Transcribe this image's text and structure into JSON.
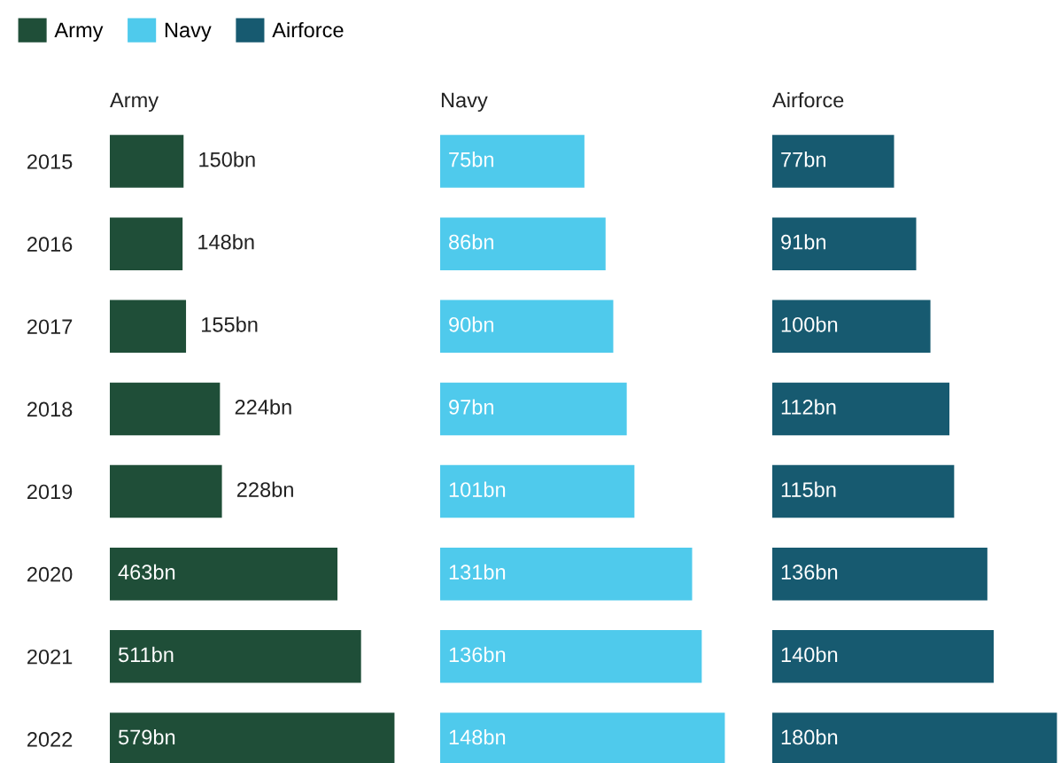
{
  "chart_data": [
    {
      "type": "bar",
      "orientation": "horizontal",
      "title": "Army",
      "categories": [
        "2015",
        "2016",
        "2017",
        "2018",
        "2019",
        "2020",
        "2021",
        "2022"
      ],
      "legend": "top left",
      "tick_labels": "y",
      "series": [
        {
          "name": "Army",
          "color": "#1f4e38",
          "values": [
            150,
            148,
            155,
            224,
            228,
            463,
            511,
            579
          ],
          "value_labels": [
            "150bn",
            "148bn",
            "155bn",
            "224bn",
            "228bn",
            "463bn",
            "511bn",
            "579bn"
          ]
        }
      ]
    },
    {
      "type": "bar",
      "orientation": "horizontal",
      "title": "Navy",
      "categories": [
        "2015",
        "2016",
        "2017",
        "2018",
        "2019",
        "2020",
        "2021",
        "2022"
      ],
      "legend": "top left",
      "tick_labels": false,
      "series": [
        {
          "name": "Navy",
          "color": "#4fcaec",
          "values": [
            75,
            86,
            90,
            97,
            101,
            131,
            136,
            148
          ],
          "value_labels": [
            "75bn",
            "86bn",
            "90bn",
            "97bn",
            "101bn",
            "131bn",
            "136bn",
            "148bn"
          ]
        }
      ]
    },
    {
      "type": "bar",
      "orientation": "horizontal",
      "title": "Airforce",
      "categories": [
        "2015",
        "2016",
        "2017",
        "2018",
        "2019",
        "2020",
        "2021",
        "2022"
      ],
      "legend": "top left",
      "tick_labels": false,
      "series": [
        {
          "name": "Airforce",
          "color": "#175a70",
          "values": [
            77,
            91,
            100,
            112,
            115,
            136,
            140,
            180
          ],
          "value_labels": [
            "77bn",
            "91bn",
            "100bn",
            "112bn",
            "115bn",
            "136bn",
            "140bn",
            "180bn"
          ]
        }
      ]
    }
  ]
}
